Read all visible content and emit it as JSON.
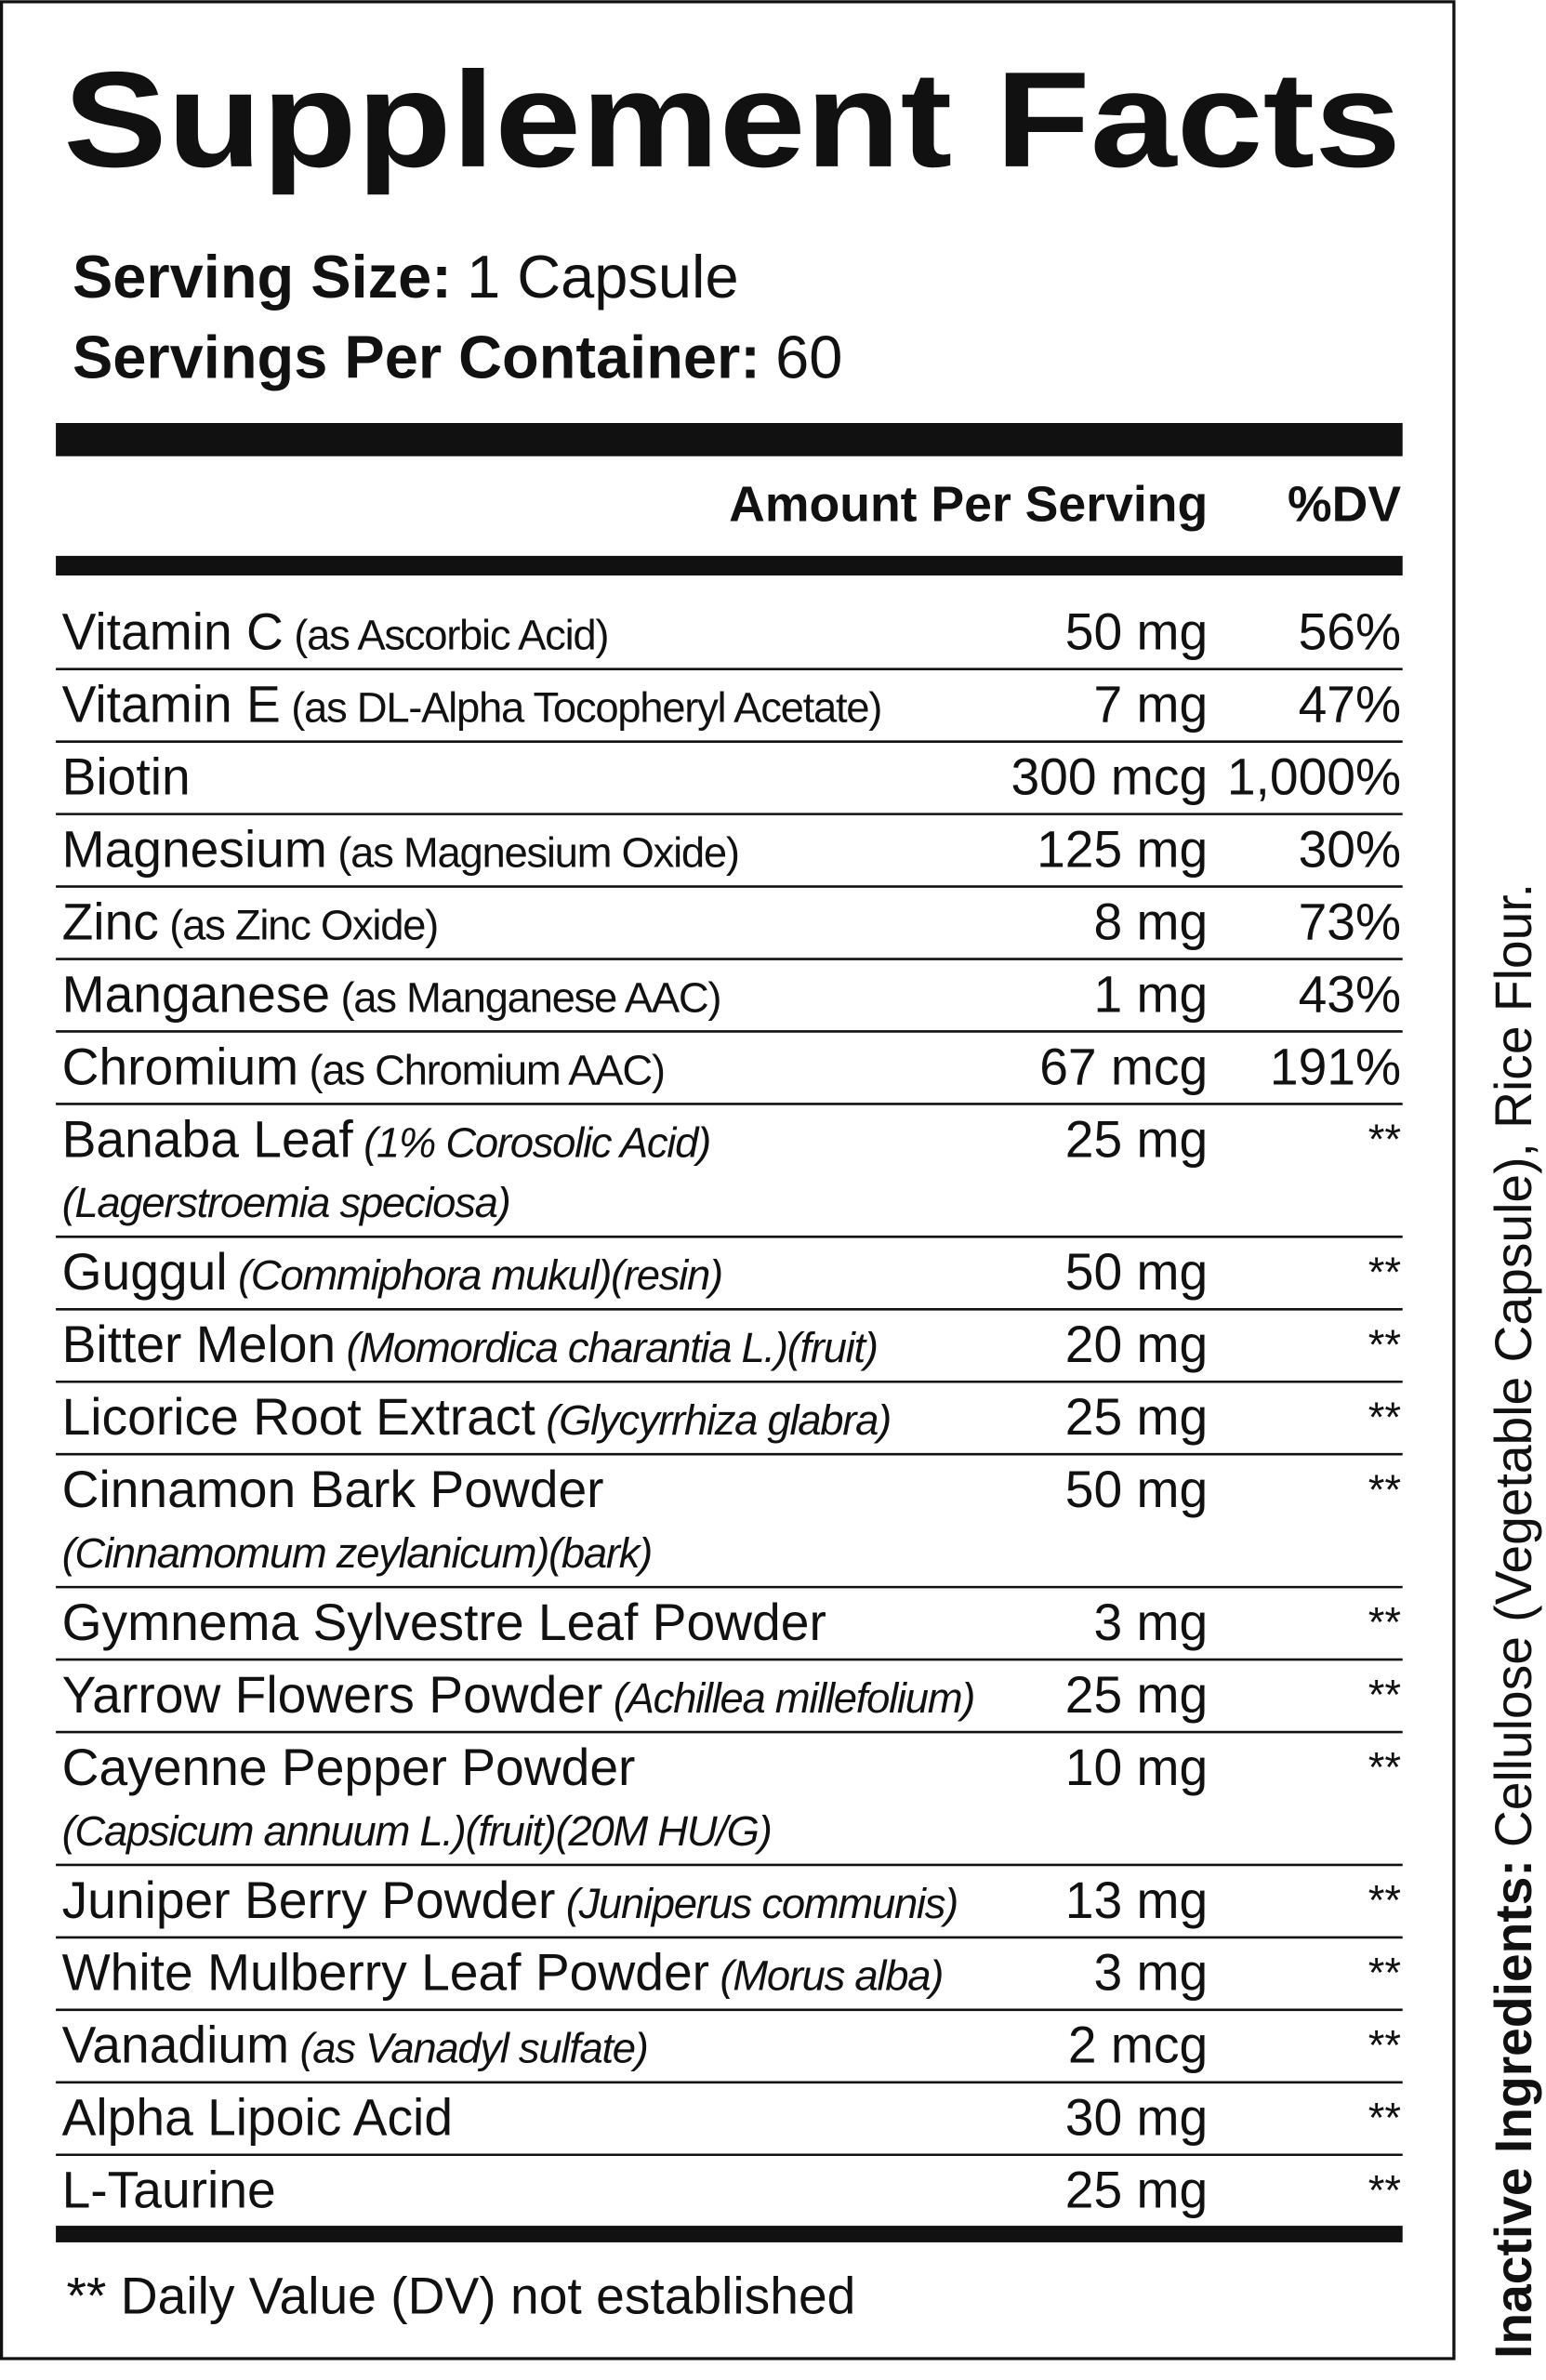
{
  "title": "Supplement Facts",
  "serving_size": {
    "label": "Serving Size:",
    "value": "1 Capsule"
  },
  "servings_per_container": {
    "label": "Servings Per Container:",
    "value": "60"
  },
  "table": {
    "header": {
      "amount": "Amount Per Serving",
      "dv": "%DV"
    },
    "rows": [
      {
        "name": "Vitamin C",
        "detail": "(as Ascorbic Acid)",
        "amount": "50 mg",
        "dv": "56%"
      },
      {
        "name": "Vitamin E",
        "detail": "(as DL-Alpha Tocopheryl Acetate)",
        "amount": "7 mg",
        "dv": "47%"
      },
      {
        "name": "Biotin",
        "amount": "300 mcg",
        "dv": "1,000%"
      },
      {
        "name": "Magnesium",
        "detail": "(as Magnesium Oxide)",
        "amount": "125 mg",
        "dv": "30%"
      },
      {
        "name": "Zinc",
        "detail": "(as Zinc Oxide)",
        "amount": "8 mg",
        "dv": "73%"
      },
      {
        "name": "Manganese",
        "detail": "(as Manganese AAC)",
        "amount": "1 mg",
        "dv": "43%"
      },
      {
        "name": "Chromium",
        "detail": "(as Chromium AAC)",
        "amount": "67 mcg",
        "dv": "191%"
      },
      {
        "name": "Banaba Leaf",
        "detail": "(1% Corosolic Acid)",
        "detail_line2": "(Lagerstroemia speciosa)",
        "italic": true,
        "amount": "25 mg",
        "dv": "**"
      },
      {
        "name": "Guggul",
        "detail": "(Commiphora mukul)(resin)",
        "italic": true,
        "amount": "50 mg",
        "dv": "**"
      },
      {
        "name": "Bitter Melon",
        "detail": "(Momordica charantia L.)(fruit)",
        "italic": true,
        "amount": "20 mg",
        "dv": "**"
      },
      {
        "name": "Licorice Root Extract",
        "detail": "(Glycyrrhiza glabra)",
        "italic": true,
        "amount": "25 mg",
        "dv": "**"
      },
      {
        "name": "Cinnamon Bark Powder",
        "detail_line2": "(Cinnamomum zeylanicum)(bark)",
        "italic": true,
        "amount": "50 mg",
        "dv": "**"
      },
      {
        "name": "Gymnema Sylvestre Leaf Powder",
        "amount": "3 mg",
        "dv": "**"
      },
      {
        "name": "Yarrow Flowers Powder",
        "detail": "(Achillea millefolium)",
        "italic": true,
        "amount": "25 mg",
        "dv": "**"
      },
      {
        "name": "Cayenne Pepper Powder",
        "detail_line2": "(Capsicum annuum L.)(fruit)(20M HU/G)",
        "italic": true,
        "amount": "10 mg",
        "dv": "**"
      },
      {
        "name": "Juniper Berry Powder",
        "detail": "(Juniperus communis)",
        "italic": true,
        "amount": "13 mg",
        "dv": "**"
      },
      {
        "name": "White Mulberry Leaf Powder",
        "detail": "(Morus alba)",
        "italic": true,
        "amount": "3 mg",
        "dv": "**"
      },
      {
        "name": "Vanadium",
        "detail": "(as Vanadyl sulfate)",
        "italic": true,
        "amount": "2 mcg",
        "dv": "**"
      },
      {
        "name": "Alpha Lipoic Acid",
        "amount": "30 mg",
        "dv": "**"
      },
      {
        "name": "L-Taurine",
        "amount": "25 mg",
        "dv": "**"
      }
    ]
  },
  "footnote": "** Daily Value (DV) not established",
  "inactive_ingredients": {
    "label": "Inactive Ingredients:",
    "value": "Cellulose (Vegetable Capsule),  Rice Flour."
  }
}
